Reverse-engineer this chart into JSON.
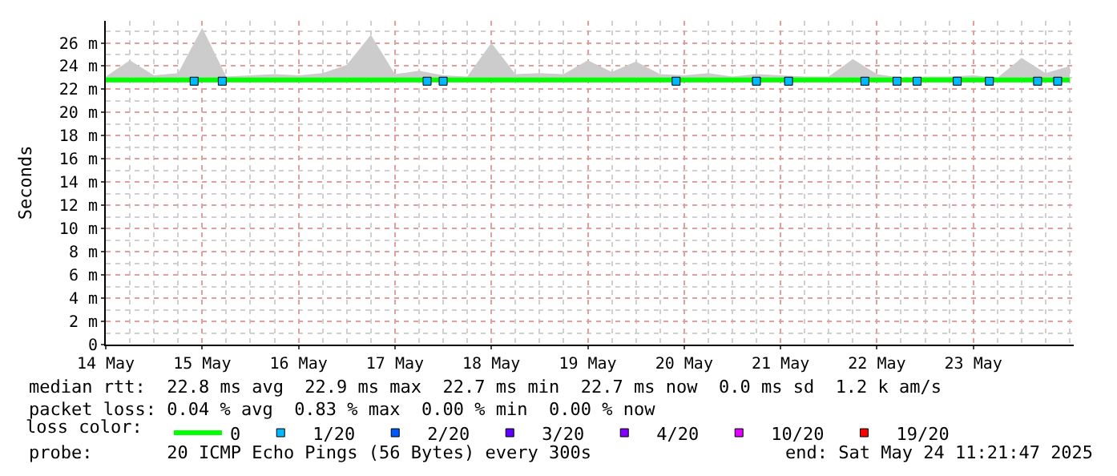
{
  "chart_data": {
    "type": "line",
    "ylabel": "Seconds",
    "legend_title": "loss color:",
    "legend": "bottom",
    "grid": true,
    "xlim": [
      "2025-05-14T00:00",
      "2025-05-24T01:00"
    ],
    "xticks": [
      {
        "value": "2025-05-14",
        "label": "14 May"
      },
      {
        "value": "2025-05-15",
        "label": "15 May"
      },
      {
        "value": "2025-05-16",
        "label": "16 May"
      },
      {
        "value": "2025-05-17",
        "label": "17 May"
      },
      {
        "value": "2025-05-18",
        "label": "18 May"
      },
      {
        "value": "2025-05-19",
        "label": "19 May"
      },
      {
        "value": "2025-05-20",
        "label": "20 May"
      },
      {
        "value": "2025-05-21",
        "label": "21 May"
      },
      {
        "value": "2025-05-22",
        "label": "22 May"
      },
      {
        "value": "2025-05-23",
        "label": "23 May"
      }
    ],
    "ylim": [
      0,
      27.9
    ],
    "yticks": [
      0,
      {
        "value": 2,
        "label": "2 m"
      },
      {
        "value": 4,
        "label": "4 m"
      },
      {
        "value": 6,
        "label": "6 m"
      },
      {
        "value": 8,
        "label": "8 m"
      },
      {
        "value": 10,
        "label": "10 m"
      },
      {
        "value": 12,
        "label": "12 m"
      },
      {
        "value": 14,
        "label": "14 m"
      },
      {
        "value": 16,
        "label": "16 m"
      },
      {
        "value": 18,
        "label": "18 m"
      },
      {
        "value": 20,
        "label": "20 m"
      },
      {
        "value": 22,
        "label": "22 m"
      },
      {
        "value": 24,
        "label": "24 m"
      },
      {
        "value": 26,
        "label": "26 m"
      }
    ],
    "x": [
      "2025-05-14T00:00",
      "2025-05-14T06:00",
      "2025-05-14T12:00",
      "2025-05-14T18:00",
      "2025-05-15T00:00",
      "2025-05-15T06:00",
      "2025-05-15T12:00",
      "2025-05-15T18:00",
      "2025-05-16T00:00",
      "2025-05-16T06:00",
      "2025-05-16T12:00",
      "2025-05-16T18:00",
      "2025-05-17T00:00",
      "2025-05-17T06:00",
      "2025-05-17T12:00",
      "2025-05-17T18:00",
      "2025-05-18T00:00",
      "2025-05-18T06:00",
      "2025-05-18T12:00",
      "2025-05-18T18:00",
      "2025-05-19T00:00",
      "2025-05-19T06:00",
      "2025-05-19T12:00",
      "2025-05-19T18:00",
      "2025-05-20T00:00",
      "2025-05-20T06:00",
      "2025-05-20T12:00",
      "2025-05-20T18:00",
      "2025-05-21T00:00",
      "2025-05-21T06:00",
      "2025-05-21T12:00",
      "2025-05-21T18:00",
      "2025-05-22T00:00",
      "2025-05-22T06:00",
      "2025-05-22T12:00",
      "2025-05-22T18:00",
      "2025-05-23T00:00",
      "2025-05-23T06:00",
      "2025-05-23T12:00",
      "2025-05-23T18:00",
      "2025-05-24T00:00"
    ],
    "series": [
      {
        "name": "0",
        "color": "#00ff00",
        "values": [
          22.8,
          22.8,
          22.8,
          22.8,
          22.8,
          22.8,
          22.8,
          22.8,
          22.8,
          22.8,
          22.8,
          22.8,
          22.8,
          22.8,
          22.8,
          22.8,
          22.8,
          22.8,
          22.8,
          22.8,
          22.8,
          22.8,
          22.8,
          22.8,
          22.8,
          22.8,
          22.8,
          22.8,
          22.8,
          22.8,
          22.8,
          22.8,
          22.8,
          22.8,
          22.8,
          22.8,
          22.8,
          22.8,
          22.8,
          22.8,
          22.8
        ],
        "lower": [
          22.6,
          22.6,
          22.6,
          22.6,
          22.6,
          22.6,
          22.6,
          22.6,
          22.6,
          22.6,
          22.6,
          22.6,
          22.6,
          22.6,
          22.6,
          22.6,
          22.6,
          22.6,
          22.6,
          22.6,
          22.6,
          22.6,
          22.6,
          22.6,
          22.6,
          22.6,
          22.6,
          22.6,
          22.6,
          22.6,
          22.6,
          22.6,
          22.6,
          22.6,
          22.6,
          22.6,
          22.6,
          22.6,
          22.6,
          22.6,
          22.6
        ],
        "upper": [
          23.1,
          24.5,
          23.2,
          23.4,
          27.3,
          23.1,
          23.2,
          23.3,
          23.2,
          23.4,
          24.1,
          26.7,
          23.3,
          23.6,
          23.2,
          23.1,
          26,
          23.3,
          23.4,
          23.3,
          24.5,
          23.5,
          24.4,
          23.3,
          23.2,
          23.4,
          23.1,
          23.3,
          23.2,
          23.1,
          23.1,
          24.6,
          23.3,
          23,
          23.1,
          23.1,
          23.2,
          23,
          24.7,
          23.4,
          24
        ]
      },
      {
        "name": "1/20",
        "color": "#00b8ff",
        "type": "scatter",
        "marker": "square",
        "x": [
          "2025-05-14T22:00",
          "2025-05-15T05:00",
          "2025-05-17T08:00",
          "2025-05-17T12:00",
          "2025-05-19T22:00",
          "2025-05-20T18:00",
          "2025-05-21T02:00",
          "2025-05-21T21:00",
          "2025-05-22T05:00",
          "2025-05-22T10:00",
          "2025-05-22T20:00",
          "2025-05-23T04:00",
          "2025-05-23T16:00",
          "2025-05-23T21:00"
        ],
        "values": [
          22.7,
          22.7,
          22.7,
          22.7,
          22.7,
          22.7,
          22.7,
          22.7,
          22.7,
          22.7,
          22.7,
          22.7,
          22.7,
          22.7
        ]
      },
      {
        "name": "2/20",
        "color": "#0059ff",
        "type": "scatter",
        "marker": "square",
        "values": [
          null,
          null,
          null,
          null,
          null,
          null,
          null,
          null,
          null,
          null,
          null,
          null,
          null,
          null,
          null,
          null,
          null,
          null,
          null,
          null,
          null,
          null,
          null,
          null,
          null,
          null,
          null,
          null,
          null,
          null,
          null,
          null,
          null,
          null,
          null,
          null,
          null,
          null,
          null,
          null,
          null
        ]
      },
      {
        "name": "3/20",
        "color": "#5e00ff",
        "type": "scatter",
        "marker": "square",
        "values": [
          null,
          null,
          null,
          null,
          null,
          null,
          null,
          null,
          null,
          null,
          null,
          null,
          null,
          null,
          null,
          null,
          null,
          null,
          null,
          null,
          null,
          null,
          null,
          null,
          null,
          null,
          null,
          null,
          null,
          null,
          null,
          null,
          null,
          null,
          null,
          null,
          null,
          null,
          null,
          null,
          null
        ]
      },
      {
        "name": "4/20",
        "color": "#7e00ff",
        "type": "scatter",
        "marker": "square",
        "values": [
          null,
          null,
          null,
          null,
          null,
          null,
          null,
          null,
          null,
          null,
          null,
          null,
          null,
          null,
          null,
          null,
          null,
          null,
          null,
          null,
          null,
          null,
          null,
          null,
          null,
          null,
          null,
          null,
          null,
          null,
          null,
          null,
          null,
          null,
          null,
          null,
          null,
          null,
          null,
          null,
          null
        ]
      },
      {
        "name": "10/20",
        "color": "#dd00ff",
        "type": "scatter",
        "marker": "square",
        "values": [
          null,
          null,
          null,
          null,
          null,
          null,
          null,
          null,
          null,
          null,
          null,
          null,
          null,
          null,
          null,
          null,
          null,
          null,
          null,
          null,
          null,
          null,
          null,
          null,
          null,
          null,
          null,
          null,
          null,
          null,
          null,
          null,
          null,
          null,
          null,
          null,
          null,
          null,
          null,
          null,
          null
        ]
      },
      {
        "name": "19/20",
        "color": "#ff0000",
        "type": "scatter",
        "marker": "square",
        "values": [
          null,
          null,
          null,
          null,
          null,
          null,
          null,
          null,
          null,
          null,
          null,
          null,
          null,
          null,
          null,
          null,
          null,
          null,
          null,
          null,
          null,
          null,
          null,
          null,
          null,
          null,
          null,
          null,
          null,
          null,
          null,
          null,
          null,
          null,
          null,
          null,
          null,
          null,
          null,
          null,
          null
        ]
      }
    ],
    "annotations": [
      "median rtt:  22.8 ms avg  22.9 ms max  22.7 ms min  22.7 ms now  0.0 ms sd  1.2 k am/s",
      "packet loss: 0.04 % avg  0.83 % max  0.00 % min  0.00 % now",
      "probe:       20 ICMP Echo Pings (56 Bytes) every 300s",
      "end: Sat May 24 11:21:47 2025"
    ]
  }
}
